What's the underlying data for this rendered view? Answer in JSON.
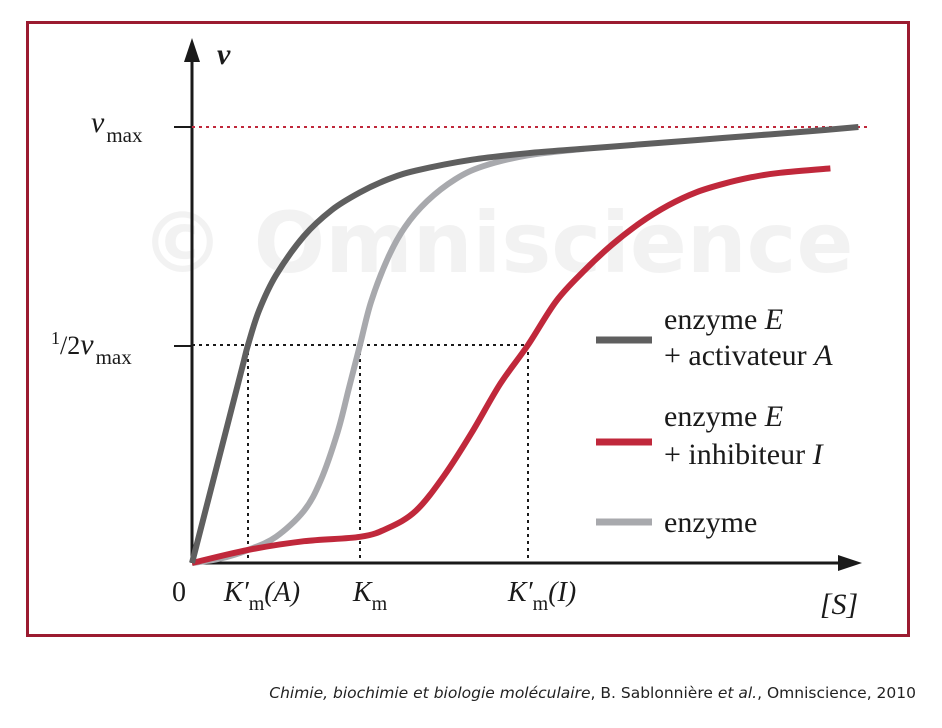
{
  "chart_data": {
    "type": "line",
    "title": "",
    "watermark": "© Omniscience",
    "x_axis": {
      "label": "[S]",
      "origin_label": "0",
      "tick_labels": [
        {
          "key": "km_a",
          "prime": "K′",
          "sub": "m",
          "arg": "(A)"
        },
        {
          "key": "km",
          "prime": "K",
          "sub": "m",
          "arg": ""
        },
        {
          "key": "km_i",
          "prime": "K′",
          "sub": "m",
          "arg": "(I)"
        }
      ],
      "ticks": {
        "km_a": 1.0,
        "km": 3.0,
        "km_i": 6.0
      },
      "range": [
        0,
        12
      ]
    },
    "y_axis": {
      "label": "v",
      "vmax_label": {
        "main": "v",
        "sub": "max"
      },
      "half_label": {
        "sup": "1",
        "slash": "/2",
        "main": "v",
        "sub": "max"
      },
      "range": [
        0,
        1.1
      ],
      "vmax": 1.0,
      "half_vmax": 0.5
    },
    "series": [
      {
        "name": "enzyme E + activateur A",
        "legend_line1": {
          "text": "enzyme ",
          "italic": "E"
        },
        "legend_line2": {
          "text": "+ activateur ",
          "italic": "A"
        },
        "color": "#5f5f5f",
        "x": [
          0,
          0.3,
          0.6,
          0.9,
          1.0,
          1.2,
          1.5,
          2,
          2.5,
          3,
          3.5,
          4,
          5,
          6,
          7,
          8,
          9,
          10,
          11,
          11.9
        ],
        "y": [
          0,
          0.15,
          0.3,
          0.45,
          0.5,
          0.58,
          0.66,
          0.75,
          0.81,
          0.85,
          0.88,
          0.9,
          0.925,
          0.94,
          0.95,
          0.96,
          0.97,
          0.98,
          0.99,
          1.0
        ]
      },
      {
        "name": "enzyme E + inhibiteur I",
        "legend_line1": {
          "text": "enzyme ",
          "italic": "E"
        },
        "legend_line2": {
          "text": "+ inhibiteur ",
          "italic": "I"
        },
        "color": "#c0283b",
        "x": [
          0,
          1,
          2,
          3,
          3.5,
          4,
          4.5,
          5,
          5.5,
          6,
          6.5,
          7,
          7.5,
          8,
          8.5,
          9,
          9.5,
          10,
          10.5,
          11.4
        ],
        "y": [
          0,
          0.03,
          0.05,
          0.06,
          0.08,
          0.12,
          0.2,
          0.3,
          0.41,
          0.5,
          0.6,
          0.67,
          0.73,
          0.78,
          0.82,
          0.85,
          0.87,
          0.885,
          0.895,
          0.905
        ]
      },
      {
        "name": "enzyme",
        "legend_line1": {
          "text": "enzyme",
          "italic": ""
        },
        "legend_line2": {
          "text": "",
          "italic": ""
        },
        "color": "#a8a9ad",
        "x": [
          0,
          0.5,
          1,
          1.5,
          2,
          2.3,
          2.6,
          2.8,
          3,
          3.2,
          3.5,
          3.8,
          4.2,
          4.7,
          5.2,
          6,
          7
        ],
        "y": [
          0,
          0.01,
          0.03,
          0.06,
          0.12,
          0.19,
          0.3,
          0.4,
          0.5,
          0.6,
          0.7,
          0.77,
          0.83,
          0.88,
          0.91,
          0.935,
          0.95
        ]
      }
    ],
    "grid": false,
    "legend_position": "right"
  },
  "citation": {
    "title": "Chimie, biochimie et biologie moléculaire",
    "middle": ", B. Sablonnière ",
    "etal": "et al.",
    "rest": ", Omniscience, 2010"
  }
}
